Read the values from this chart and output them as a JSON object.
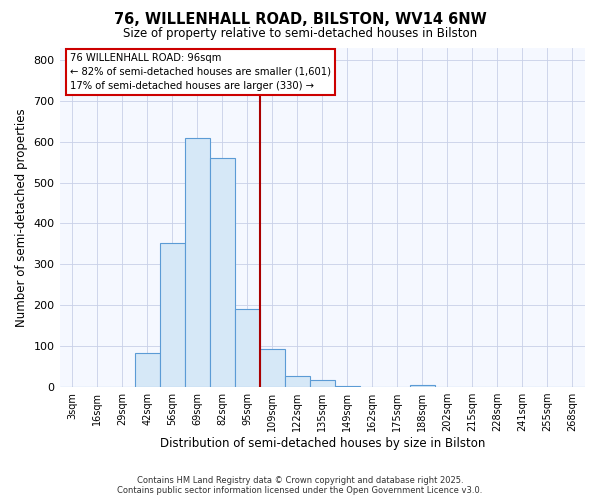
{
  "title": "76, WILLENHALL ROAD, BILSTON, WV14 6NW",
  "subtitle": "Size of property relative to semi-detached houses in Bilston",
  "xlabel": "Distribution of semi-detached houses by size in Bilston",
  "ylabel": "Number of semi-detached properties",
  "bin_labels": [
    "3sqm",
    "16sqm",
    "29sqm",
    "42sqm",
    "56sqm",
    "69sqm",
    "82sqm",
    "95sqm",
    "109sqm",
    "122sqm",
    "135sqm",
    "149sqm",
    "162sqm",
    "175sqm",
    "188sqm",
    "202sqm",
    "215sqm",
    "228sqm",
    "241sqm",
    "255sqm",
    "268sqm"
  ],
  "bar_heights": [
    0,
    0,
    0,
    83,
    352,
    608,
    560,
    190,
    93,
    28,
    17,
    3,
    0,
    0,
    5,
    0,
    0,
    0,
    0,
    0,
    0
  ],
  "bar_color": "#d6e8f7",
  "bar_edge_color": "#5b9bd5",
  "vline_color": "#aa0000",
  "ylim": [
    0,
    830
  ],
  "yticks": [
    0,
    100,
    200,
    300,
    400,
    500,
    600,
    700,
    800
  ],
  "annotation_title": "76 WILLENHALL ROAD: 96sqm",
  "annotation_line1": "← 82% of semi-detached houses are smaller (1,601)",
  "annotation_line2": "17% of semi-detached houses are larger (330) →",
  "annotation_box_color": "#ffffff",
  "annotation_box_edge": "#cc0000",
  "footer1": "Contains HM Land Registry data © Crown copyright and database right 2025.",
  "footer2": "Contains public sector information licensed under the Open Government Licence v3.0.",
  "background_color": "#ffffff",
  "plot_bg_color": "#f5f8ff",
  "grid_color": "#c8d0e8"
}
